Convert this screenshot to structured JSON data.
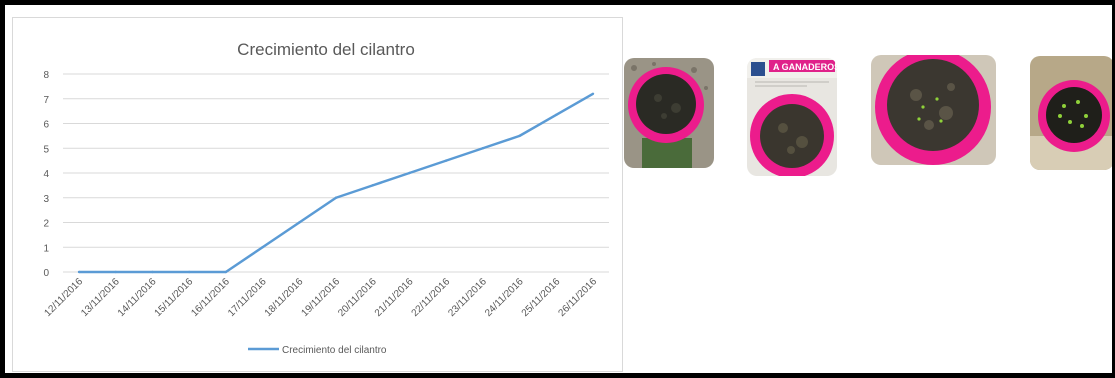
{
  "chart_data": {
    "type": "line",
    "title": "Crecimiento del cilantro",
    "xlabel": "",
    "ylabel": "",
    "ylim": [
      0,
      8
    ],
    "yticks": [
      0,
      1,
      2,
      3,
      4,
      5,
      6,
      7,
      8
    ],
    "grid": true,
    "legend": "bottom",
    "categories": [
      "12/11/2016",
      "13/11/2016",
      "14/11/2016",
      "15/11/2016",
      "16/11/2016",
      "17/11/2016",
      "18/11/2016",
      "19/11/2016",
      "20/11/2016",
      "21/11/2016",
      "22/11/2016",
      "23/11/2016",
      "24/11/2016",
      "25/11/2016",
      "26/11/2016"
    ],
    "series": [
      {
        "name": "Crecimiento del cilantro",
        "values": [
          0,
          0,
          0,
          0,
          0,
          1,
          2,
          3,
          3.5,
          4,
          4.5,
          5,
          5.5,
          6.35,
          7.2
        ],
        "color": "#5b9bd5"
      }
    ]
  },
  "colors": {
    "pot": "#ec1c8c",
    "soil": "#2a2a24",
    "sprout": "#8fd13a",
    "grid": "#d9d9d9"
  },
  "photos": [
    {
      "subject": "pot-with-soil"
    },
    {
      "subject": "pot-on-newspaper"
    },
    {
      "subject": "pot-with-seedlings"
    },
    {
      "subject": "pot-with-sprouts"
    }
  ]
}
